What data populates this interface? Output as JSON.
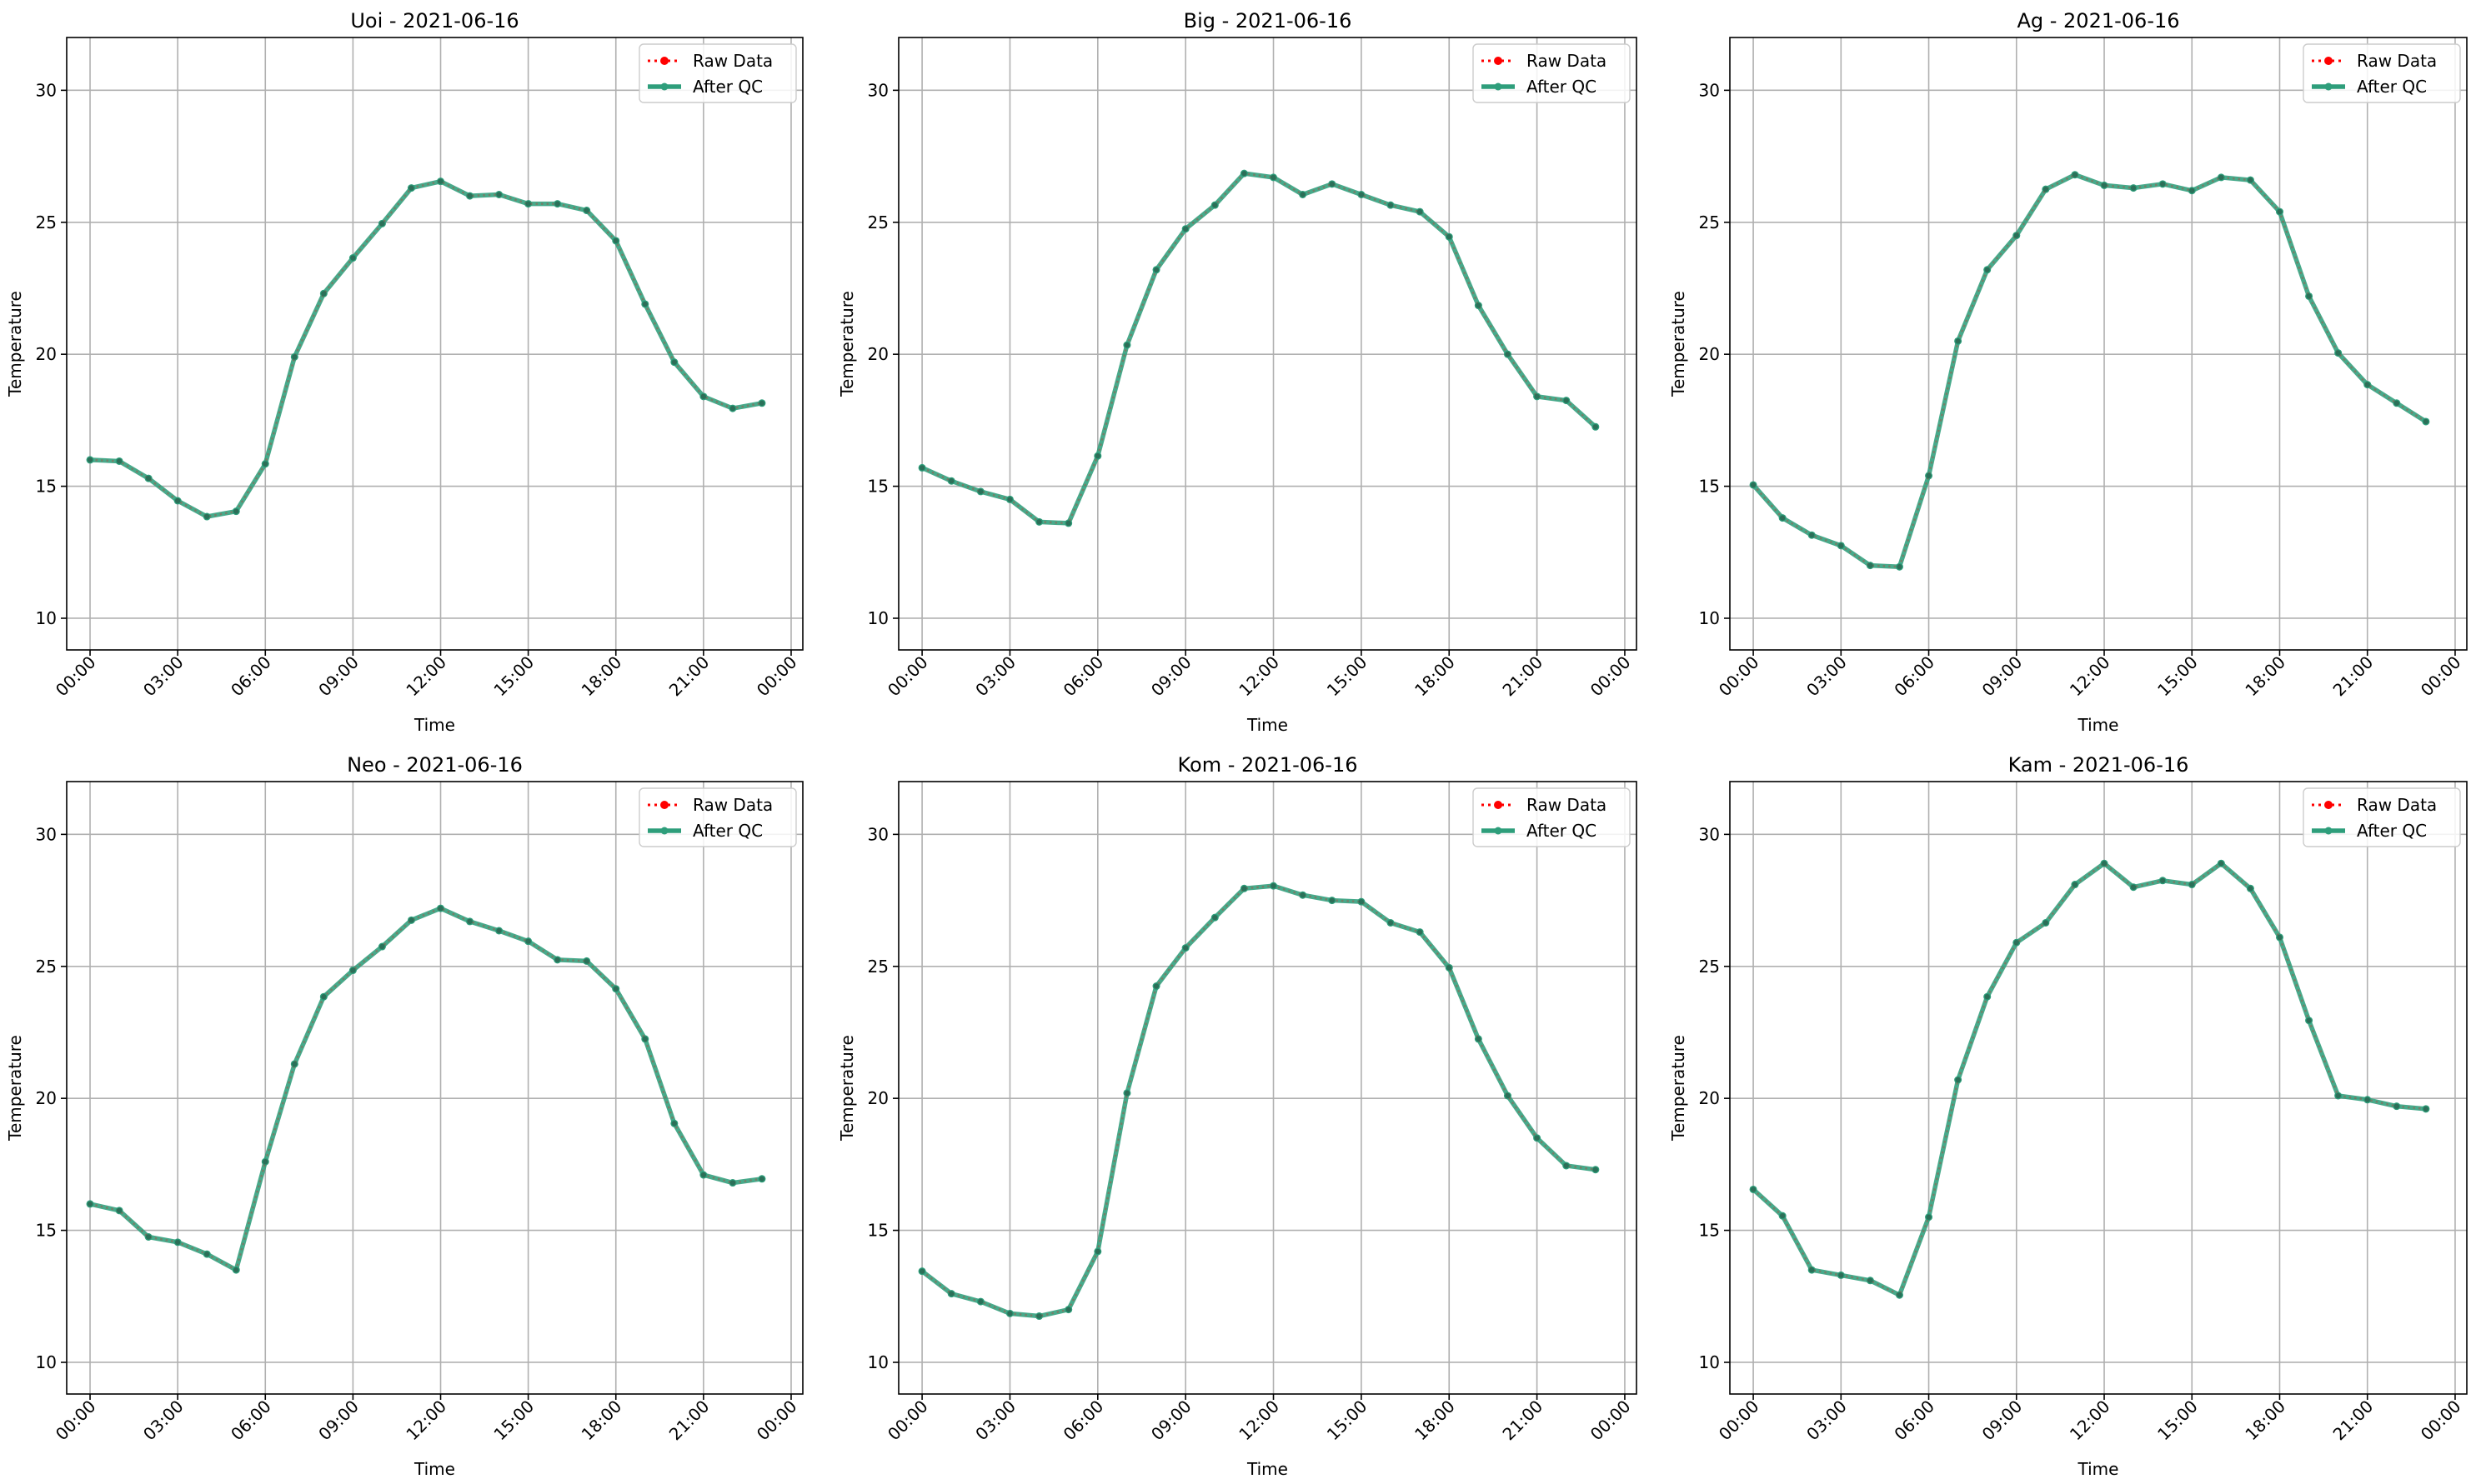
{
  "colors": {
    "raw": "#ff0000",
    "qc": "#2e9e7b",
    "grid": "#b0b0b0",
    "axis": "#000000"
  },
  "legend_entries": [
    "Raw Data",
    "After QC"
  ],
  "chart_data": [
    {
      "type": "line",
      "title": "Uoi - 2021-06-16",
      "xlabel": "Time",
      "ylabel": "Temperature",
      "x_ticks": [
        "00:00",
        "03:00",
        "06:00",
        "09:00",
        "12:00",
        "15:00",
        "18:00",
        "21:00",
        "00:00"
      ],
      "y_ticks": [
        10,
        15,
        20,
        25,
        30
      ],
      "ylim": [
        8.8,
        32
      ],
      "grid": true,
      "legend": "top-right",
      "x": [
        "00:00",
        "01:00",
        "02:00",
        "03:00",
        "04:00",
        "05:00",
        "06:00",
        "07:00",
        "08:00",
        "09:00",
        "10:00",
        "11:00",
        "12:00",
        "13:00",
        "14:00",
        "15:00",
        "16:00",
        "17:00",
        "18:00",
        "19:00",
        "20:00",
        "21:00",
        "22:00",
        "23:00"
      ],
      "series": [
        {
          "name": "Raw Data",
          "values": [
            16.0,
            15.95,
            15.3,
            14.45,
            13.85,
            14.05,
            15.85,
            19.9,
            22.3,
            23.65,
            24.95,
            26.3,
            26.55,
            26.0,
            26.05,
            25.7,
            25.7,
            25.45,
            24.3,
            21.9,
            19.7,
            18.4,
            17.95,
            18.15
          ]
        },
        {
          "name": "After QC",
          "values": [
            16.0,
            15.95,
            15.3,
            14.45,
            13.85,
            14.05,
            15.85,
            19.9,
            22.3,
            23.65,
            24.95,
            26.3,
            26.55,
            26.0,
            26.05,
            25.7,
            25.7,
            25.45,
            24.3,
            21.9,
            19.7,
            18.4,
            17.95,
            18.15
          ]
        }
      ]
    },
    {
      "type": "line",
      "title": "Big - 2021-06-16",
      "xlabel": "Time",
      "ylabel": "Temperature",
      "x_ticks": [
        "00:00",
        "03:00",
        "06:00",
        "09:00",
        "12:00",
        "15:00",
        "18:00",
        "21:00",
        "00:00"
      ],
      "y_ticks": [
        10,
        15,
        20,
        25,
        30
      ],
      "ylim": [
        8.8,
        32
      ],
      "grid": true,
      "legend": "top-right",
      "x": [
        "00:00",
        "01:00",
        "02:00",
        "03:00",
        "04:00",
        "05:00",
        "06:00",
        "07:00",
        "08:00",
        "09:00",
        "10:00",
        "11:00",
        "12:00",
        "13:00",
        "14:00",
        "15:00",
        "16:00",
        "17:00",
        "18:00",
        "19:00",
        "20:00",
        "21:00",
        "22:00",
        "23:00"
      ],
      "series": [
        {
          "name": "Raw Data",
          "values": [
            15.7,
            15.2,
            14.8,
            14.5,
            13.65,
            13.6,
            16.15,
            20.35,
            23.2,
            24.75,
            25.65,
            26.85,
            26.7,
            26.05,
            26.45,
            26.05,
            25.65,
            25.4,
            24.45,
            21.85,
            20.0,
            18.4,
            18.25,
            17.25
          ]
        },
        {
          "name": "After QC",
          "values": [
            15.7,
            15.2,
            14.8,
            14.5,
            13.65,
            13.6,
            16.15,
            20.35,
            23.2,
            24.75,
            25.65,
            26.85,
            26.7,
            26.05,
            26.45,
            26.05,
            25.65,
            25.4,
            24.45,
            21.85,
            20.0,
            18.4,
            18.25,
            17.25
          ]
        }
      ]
    },
    {
      "type": "line",
      "title": "Ag - 2021-06-16",
      "xlabel": "Time",
      "ylabel": "Temperature",
      "x_ticks": [
        "00:00",
        "03:00",
        "06:00",
        "09:00",
        "12:00",
        "15:00",
        "18:00",
        "21:00",
        "00:00"
      ],
      "y_ticks": [
        10,
        15,
        20,
        25,
        30
      ],
      "ylim": [
        8.8,
        32
      ],
      "grid": true,
      "legend": "top-right",
      "x": [
        "00:00",
        "01:00",
        "02:00",
        "03:00",
        "04:00",
        "05:00",
        "06:00",
        "07:00",
        "08:00",
        "09:00",
        "10:00",
        "11:00",
        "12:00",
        "13:00",
        "14:00",
        "15:00",
        "16:00",
        "17:00",
        "18:00",
        "19:00",
        "20:00",
        "21:00",
        "22:00",
        "23:00"
      ],
      "series": [
        {
          "name": "Raw Data",
          "values": [
            15.05,
            13.8,
            13.15,
            12.75,
            12.0,
            11.95,
            15.4,
            20.5,
            23.2,
            24.5,
            26.25,
            26.8,
            26.4,
            26.3,
            26.45,
            26.2,
            26.7,
            26.6,
            25.4,
            22.2,
            20.05,
            18.85,
            18.15,
            17.45
          ]
        },
        {
          "name": "After QC",
          "values": [
            15.05,
            13.8,
            13.15,
            12.75,
            12.0,
            11.95,
            15.4,
            20.5,
            23.2,
            24.5,
            26.25,
            26.8,
            26.4,
            26.3,
            26.45,
            26.2,
            26.7,
            26.6,
            25.4,
            22.2,
            20.05,
            18.85,
            18.15,
            17.45
          ]
        }
      ]
    },
    {
      "type": "line",
      "title": "Neo - 2021-06-16",
      "xlabel": "Time",
      "ylabel": "Temperature",
      "x_ticks": [
        "00:00",
        "03:00",
        "06:00",
        "09:00",
        "12:00",
        "15:00",
        "18:00",
        "21:00",
        "00:00"
      ],
      "y_ticks": [
        10,
        15,
        20,
        25,
        30
      ],
      "ylim": [
        8.8,
        32
      ],
      "grid": true,
      "legend": "top-right",
      "x": [
        "00:00",
        "01:00",
        "02:00",
        "03:00",
        "04:00",
        "05:00",
        "06:00",
        "07:00",
        "08:00",
        "09:00",
        "10:00",
        "11:00",
        "12:00",
        "13:00",
        "14:00",
        "15:00",
        "16:00",
        "17:00",
        "18:00",
        "19:00",
        "20:00",
        "21:00",
        "22:00",
        "23:00"
      ],
      "series": [
        {
          "name": "Raw Data",
          "values": [
            16.0,
            15.75,
            14.75,
            14.55,
            14.1,
            13.5,
            17.6,
            21.3,
            23.85,
            24.85,
            25.75,
            26.75,
            27.2,
            26.7,
            26.35,
            25.95,
            25.25,
            25.2,
            24.15,
            22.25,
            19.05,
            17.1,
            16.8,
            16.95
          ]
        },
        {
          "name": "After QC",
          "values": [
            16.0,
            15.75,
            14.75,
            14.55,
            14.1,
            13.5,
            17.6,
            21.3,
            23.85,
            24.85,
            25.75,
            26.75,
            27.2,
            26.7,
            26.35,
            25.95,
            25.25,
            25.2,
            24.15,
            22.25,
            19.05,
            17.1,
            16.8,
            16.95
          ]
        }
      ]
    },
    {
      "type": "line",
      "title": "Kom - 2021-06-16",
      "xlabel": "Time",
      "ylabel": "Temperature",
      "x_ticks": [
        "00:00",
        "03:00",
        "06:00",
        "09:00",
        "12:00",
        "15:00",
        "18:00",
        "21:00",
        "00:00"
      ],
      "y_ticks": [
        10,
        15,
        20,
        25,
        30
      ],
      "ylim": [
        8.8,
        32
      ],
      "grid": true,
      "legend": "top-right",
      "x": [
        "00:00",
        "01:00",
        "02:00",
        "03:00",
        "04:00",
        "05:00",
        "06:00",
        "07:00",
        "08:00",
        "09:00",
        "10:00",
        "11:00",
        "12:00",
        "13:00",
        "14:00",
        "15:00",
        "16:00",
        "17:00",
        "18:00",
        "19:00",
        "20:00",
        "21:00",
        "22:00",
        "23:00"
      ],
      "series": [
        {
          "name": "Raw Data",
          "values": [
            13.45,
            12.6,
            12.3,
            11.85,
            11.75,
            12.0,
            14.2,
            20.2,
            24.25,
            25.7,
            26.85,
            27.95,
            28.05,
            27.7,
            27.5,
            27.45,
            26.65,
            26.3,
            24.95,
            22.25,
            20.1,
            18.5,
            17.45,
            17.3
          ]
        },
        {
          "name": "After QC",
          "values": [
            13.45,
            12.6,
            12.3,
            11.85,
            11.75,
            12.0,
            14.2,
            20.2,
            24.25,
            25.7,
            26.85,
            27.95,
            28.05,
            27.7,
            27.5,
            27.45,
            26.65,
            26.3,
            24.95,
            22.25,
            20.1,
            18.5,
            17.45,
            17.3
          ]
        }
      ]
    },
    {
      "type": "line",
      "title": "Kam - 2021-06-16",
      "xlabel": "Time",
      "ylabel": "Temperature",
      "x_ticks": [
        "00:00",
        "03:00",
        "06:00",
        "09:00",
        "12:00",
        "15:00",
        "18:00",
        "21:00",
        "00:00"
      ],
      "y_ticks": [
        10,
        15,
        20,
        25,
        30
      ],
      "ylim": [
        8.8,
        32
      ],
      "grid": true,
      "legend": "top-right",
      "x": [
        "00:00",
        "01:00",
        "02:00",
        "03:00",
        "04:00",
        "05:00",
        "06:00",
        "07:00",
        "08:00",
        "09:00",
        "10:00",
        "11:00",
        "12:00",
        "13:00",
        "14:00",
        "15:00",
        "16:00",
        "17:00",
        "18:00",
        "19:00",
        "20:00",
        "21:00",
        "22:00",
        "23:00"
      ],
      "series": [
        {
          "name": "Raw Data",
          "values": [
            16.55,
            15.55,
            13.5,
            13.3,
            13.1,
            12.55,
            15.5,
            20.7,
            23.85,
            25.9,
            26.65,
            28.1,
            28.9,
            28.0,
            28.25,
            28.1,
            28.9,
            27.95,
            26.1,
            22.95,
            20.1,
            19.95,
            19.7,
            19.6
          ]
        },
        {
          "name": "After QC",
          "values": [
            16.55,
            15.55,
            13.5,
            13.3,
            13.1,
            12.55,
            15.5,
            20.7,
            23.85,
            25.9,
            26.65,
            28.1,
            28.9,
            28.0,
            28.25,
            28.1,
            28.9,
            27.95,
            26.1,
            22.95,
            20.1,
            19.95,
            19.7,
            19.6
          ]
        }
      ]
    }
  ]
}
